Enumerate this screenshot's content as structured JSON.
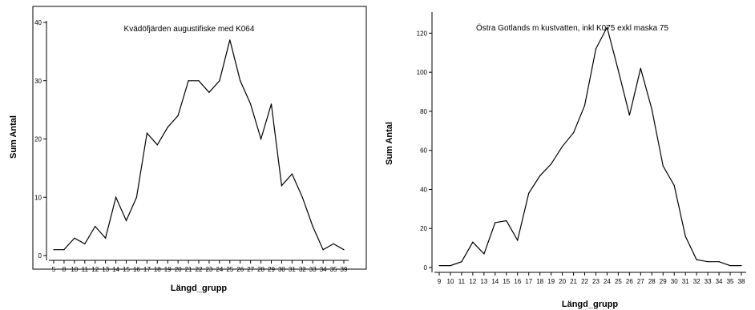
{
  "chart_data": [
    {
      "type": "line",
      "title": "Kvädöfjärden augustifiske med K064",
      "xlabel": "Längd_grupp",
      "ylabel": "Sum Antal",
      "categories": [
        "5",
        "8",
        "10",
        "11",
        "12",
        "13",
        "14",
        "15",
        "16",
        "17",
        "18",
        "19",
        "20",
        "21",
        "22",
        "23",
        "24",
        "25",
        "26",
        "27",
        "28",
        "29",
        "30",
        "31",
        "32",
        "33",
        "34",
        "35",
        "39"
      ],
      "values": [
        1,
        1,
        3,
        2,
        5,
        3,
        10,
        6,
        10,
        21,
        19,
        22,
        24,
        30,
        30,
        28,
        30,
        37,
        30,
        26,
        20,
        26,
        12,
        14,
        10,
        5,
        1,
        2,
        1
      ],
      "ylim": [
        0,
        40
      ],
      "yticks": [
        0,
        10,
        20,
        30,
        40
      ],
      "grid": false,
      "frame": true,
      "line_color": "#000000"
    },
    {
      "type": "line",
      "title": "Östra Gotlands m kustvatten, inkl K075 exkl maska 75",
      "xlabel": "Längd_grupp",
      "ylabel": "Sum Antal",
      "categories": [
        "9",
        "10",
        "11",
        "12",
        "13",
        "14",
        "15",
        "16",
        "17",
        "18",
        "19",
        "20",
        "21",
        "22",
        "23",
        "24",
        "25",
        "26",
        "27",
        "28",
        "29",
        "30",
        "31",
        "32",
        "33",
        "34",
        "35",
        "38"
      ],
      "values": [
        1,
        1,
        3,
        13,
        7,
        23,
        24,
        14,
        38,
        47,
        53,
        62,
        69,
        83,
        112,
        123,
        101,
        78,
        102,
        81,
        52,
        42,
        16,
        4,
        3,
        3,
        1,
        1
      ],
      "ylim": [
        0,
        130
      ],
      "yticks": [
        0,
        20,
        40,
        60,
        80,
        100,
        120
      ],
      "grid": false,
      "frame": false,
      "line_color": "#000000"
    }
  ]
}
